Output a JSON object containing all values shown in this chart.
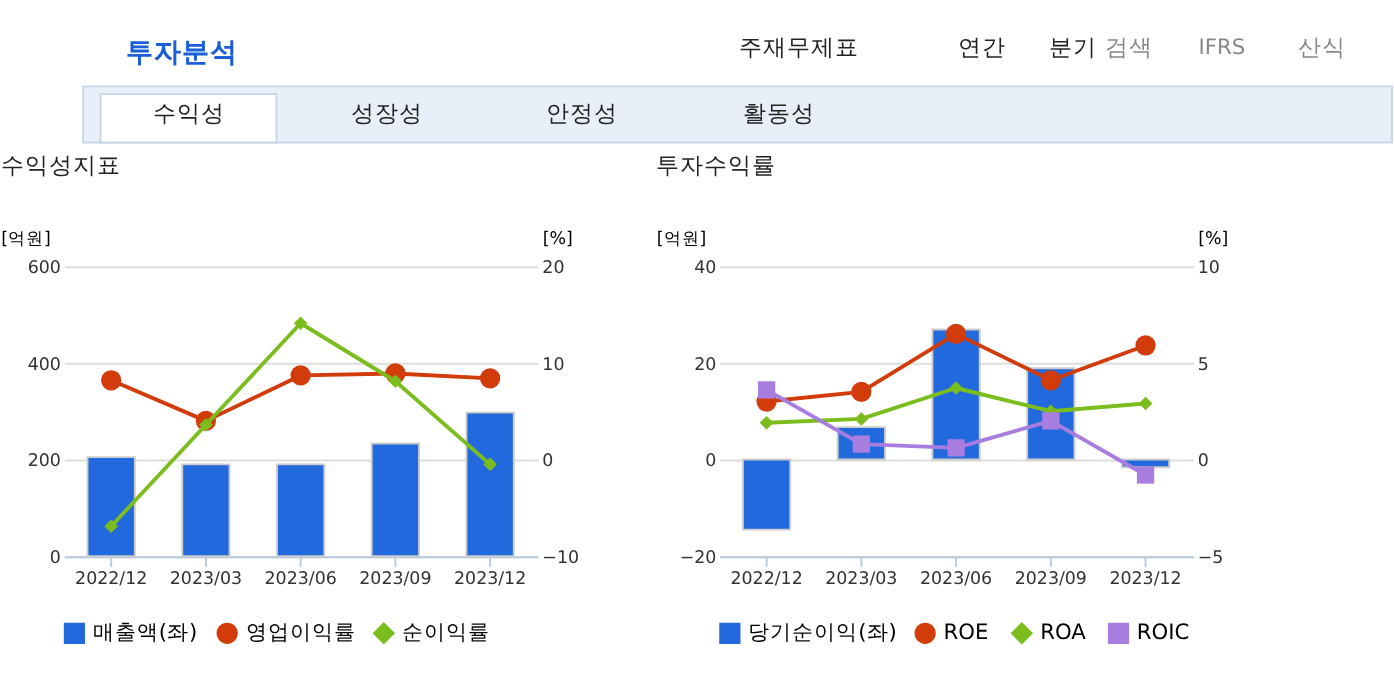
{
  "chart_data": [
    {
      "type": "bar",
      "title": "수익성지표",
      "ylabel": "[억원]",
      "y2label": "[%]",
      "annotations": [
        "투자분석",
        "주재무제표",
        "연간",
        "분기",
        "검색",
        "IFRS",
        "산식",
        "수익성",
        "성장성",
        "안정성",
        "활동성"
      ],
      "categories": [
        "2022/12",
        "2023/03",
        "2023/06",
        "2023/09",
        "2023/12"
      ],
      "series": [
        {
          "name": "매출액(좌)",
          "color": "#2369de",
          "values": [
            205,
            190,
            190,
            233,
            297
          ]
        },
        {
          "name": "영업이익률",
          "type": "line",
          "axis": "y2",
          "marker": "circle",
          "color": "#d23c0a",
          "values": [
            8.2,
            4.0,
            8.7,
            8.9,
            8.4
          ]
        },
        {
          "name": "순이익률",
          "type": "line",
          "axis": "y2",
          "marker": "diamond",
          "color": "#7cbd1e",
          "values": [
            -6.9,
            3.6,
            14.1,
            8.1,
            -0.5
          ]
        }
      ],
      "ylim": [
        0,
        600
      ],
      "yticks": [
        0,
        200,
        400,
        600
      ],
      "y2lim": [
        -10,
        20
      ],
      "y2ticks": [
        -10,
        0,
        10,
        20
      ],
      "grid": "y",
      "legend": "bottom"
    },
    {
      "type": "bar",
      "title": "투자수익률",
      "ylabel": "[억원]",
      "y2label": "[%]",
      "categories": [
        "2022/12",
        "2023/03",
        "2023/06",
        "2023/09",
        "2023/12"
      ],
      "series": [
        {
          "name": "당기순이익(좌)",
          "color": "#2369de",
          "values": [
            -14.5,
            6.7,
            26.9,
            18.9,
            -1.6
          ]
        },
        {
          "name": "ROE",
          "type": "line",
          "axis": "y2",
          "marker": "circle",
          "color": "#d23c0a",
          "values": [
            3.0,
            3.5,
            6.5,
            4.1,
            5.9
          ]
        },
        {
          "name": "ROA",
          "type": "line",
          "axis": "y2",
          "marker": "diamond",
          "color": "#7cbd1e",
          "values": [
            1.9,
            2.1,
            3.7,
            2.5,
            2.9
          ]
        },
        {
          "name": "ROIC",
          "type": "line",
          "axis": "y2",
          "marker": "square",
          "color": "#a87de0",
          "values": [
            3.6,
            0.8,
            0.6,
            2.0,
            -0.8
          ]
        }
      ],
      "ylim": [
        -20,
        40
      ],
      "yticks": [
        -20,
        0,
        20,
        40
      ],
      "y2lim": [
        -5,
        10
      ],
      "y2ticks": [
        -5,
        0,
        5,
        10
      ],
      "grid": "y",
      "legend": "bottom"
    }
  ]
}
